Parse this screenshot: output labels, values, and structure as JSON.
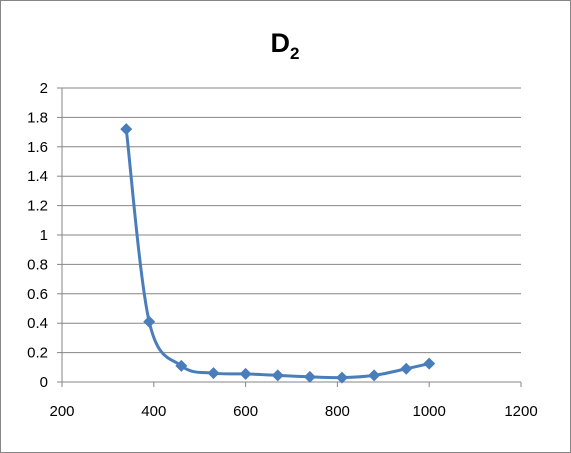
{
  "chart_data": {
    "type": "line",
    "title": "D",
    "title_subscript": "2",
    "xlabel": "",
    "ylabel": "",
    "xlim": [
      200,
      1200
    ],
    "ylim": [
      0,
      2
    ],
    "x_ticks": [
      200,
      400,
      600,
      800,
      1000,
      1200
    ],
    "y_ticks": [
      0,
      0.2,
      0.4,
      0.6,
      0.8,
      1,
      1.2,
      1.4,
      1.6,
      1.8,
      2
    ],
    "y_tick_labels": [
      "0",
      "0.2",
      "0.4",
      "0.6",
      "0.8",
      "1",
      "1.2",
      "1.4",
      "1.6",
      "1.8",
      "2"
    ],
    "grid": "horizontal",
    "legend": "none",
    "series": [
      {
        "color": "#4A7EBB",
        "marker": "diamond",
        "smooth": true,
        "x": [
          340,
          390,
          460,
          530,
          600,
          670,
          740,
          810,
          880,
          950,
          1000
        ],
        "y": [
          1.72,
          0.41,
          0.11,
          0.06,
          0.055,
          0.045,
          0.035,
          0.03,
          0.045,
          0.09,
          0.125
        ]
      }
    ]
  }
}
